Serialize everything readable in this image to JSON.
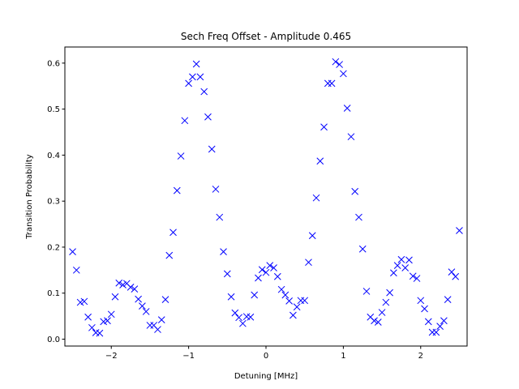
{
  "chart_data": {
    "type": "scatter",
    "title": "Sech Freq Offset - Amplitude 0.465",
    "xlabel": "Detuning [MHz]",
    "ylabel": "Transition Probability",
    "xlim": [
      -2.6,
      2.6
    ],
    "ylim": [
      -0.015,
      0.635
    ],
    "xticks": [
      -2,
      -1,
      0,
      1,
      2
    ],
    "yticks": [
      0.0,
      0.1,
      0.2,
      0.3,
      0.4,
      0.5,
      0.6
    ],
    "xtick_labels": [
      "−2",
      "−1",
      "0",
      "1",
      "2"
    ],
    "ytick_labels": [
      "0.0",
      "0.1",
      "0.2",
      "0.3",
      "0.4",
      "0.5",
      "0.6"
    ],
    "grid": false,
    "marker": "x",
    "color": "#0000ff",
    "points": [
      [
        -2.5,
        0.19
      ],
      [
        -2.45,
        0.15
      ],
      [
        -2.4,
        0.08
      ],
      [
        -2.35,
        0.082
      ],
      [
        -2.3,
        0.048
      ],
      [
        -2.25,
        0.025
      ],
      [
        -2.2,
        0.014
      ],
      [
        -2.15,
        0.013
      ],
      [
        -2.1,
        0.038
      ],
      [
        -2.05,
        0.04
      ],
      [
        -2.0,
        0.054
      ],
      [
        -1.95,
        0.092
      ],
      [
        -1.9,
        0.122
      ],
      [
        -1.85,
        0.118
      ],
      [
        -1.8,
        0.121
      ],
      [
        -1.75,
        0.113
      ],
      [
        -1.7,
        0.109
      ],
      [
        -1.65,
        0.087
      ],
      [
        -1.6,
        0.072
      ],
      [
        -1.55,
        0.06
      ],
      [
        -1.5,
        0.03
      ],
      [
        -1.45,
        0.03
      ],
      [
        -1.4,
        0.021
      ],
      [
        -1.35,
        0.042
      ],
      [
        -1.3,
        0.086
      ],
      [
        -1.25,
        0.182
      ],
      [
        -1.2,
        0.232
      ],
      [
        -1.15,
        0.323
      ],
      [
        -1.1,
        0.398
      ],
      [
        -1.05,
        0.475
      ],
      [
        -1.0,
        0.556
      ],
      [
        -0.95,
        0.57
      ],
      [
        -0.9,
        0.598
      ],
      [
        -0.85,
        0.57
      ],
      [
        -0.8,
        0.538
      ],
      [
        -0.75,
        0.483
      ],
      [
        -0.7,
        0.413
      ],
      [
        -0.65,
        0.326
      ],
      [
        -0.6,
        0.265
      ],
      [
        -0.55,
        0.19
      ],
      [
        -0.5,
        0.142
      ],
      [
        -0.45,
        0.092
      ],
      [
        -0.4,
        0.057
      ],
      [
        -0.35,
        0.047
      ],
      [
        -0.3,
        0.034
      ],
      [
        -0.25,
        0.049
      ],
      [
        -0.2,
        0.048
      ],
      [
        -0.15,
        0.096
      ],
      [
        -0.1,
        0.133
      ],
      [
        -0.05,
        0.151
      ],
      [
        0.0,
        0.145
      ],
      [
        0.05,
        0.16
      ],
      [
        0.1,
        0.155
      ],
      [
        0.15,
        0.136
      ],
      [
        0.2,
        0.108
      ],
      [
        0.25,
        0.096
      ],
      [
        0.3,
        0.083
      ],
      [
        0.35,
        0.052
      ],
      [
        0.4,
        0.07
      ],
      [
        0.45,
        0.084
      ],
      [
        0.5,
        0.084
      ],
      [
        0.55,
        0.167
      ],
      [
        0.6,
        0.225
      ],
      [
        0.65,
        0.307
      ],
      [
        0.7,
        0.387
      ],
      [
        0.75,
        0.461
      ],
      [
        0.8,
        0.556
      ],
      [
        0.85,
        0.556
      ],
      [
        0.9,
        0.603
      ],
      [
        0.95,
        0.597
      ],
      [
        1.0,
        0.577
      ],
      [
        1.05,
        0.502
      ],
      [
        1.1,
        0.44
      ],
      [
        1.15,
        0.321
      ],
      [
        1.2,
        0.265
      ],
      [
        1.25,
        0.196
      ],
      [
        1.3,
        0.104
      ],
      [
        1.35,
        0.048
      ],
      [
        1.4,
        0.04
      ],
      [
        1.45,
        0.037
      ],
      [
        1.5,
        0.058
      ],
      [
        1.55,
        0.08
      ],
      [
        1.6,
        0.101
      ],
      [
        1.65,
        0.144
      ],
      [
        1.7,
        0.16
      ],
      [
        1.75,
        0.173
      ],
      [
        1.8,
        0.155
      ],
      [
        1.85,
        0.172
      ],
      [
        1.9,
        0.137
      ],
      [
        1.95,
        0.132
      ],
      [
        2.0,
        0.084
      ],
      [
        2.05,
        0.066
      ],
      [
        2.1,
        0.038
      ],
      [
        2.15,
        0.015
      ],
      [
        2.2,
        0.015
      ],
      [
        2.25,
        0.028
      ],
      [
        2.3,
        0.04
      ],
      [
        2.35,
        0.086
      ],
      [
        2.4,
        0.146
      ],
      [
        2.45,
        0.136
      ],
      [
        2.5,
        0.236
      ]
    ]
  }
}
